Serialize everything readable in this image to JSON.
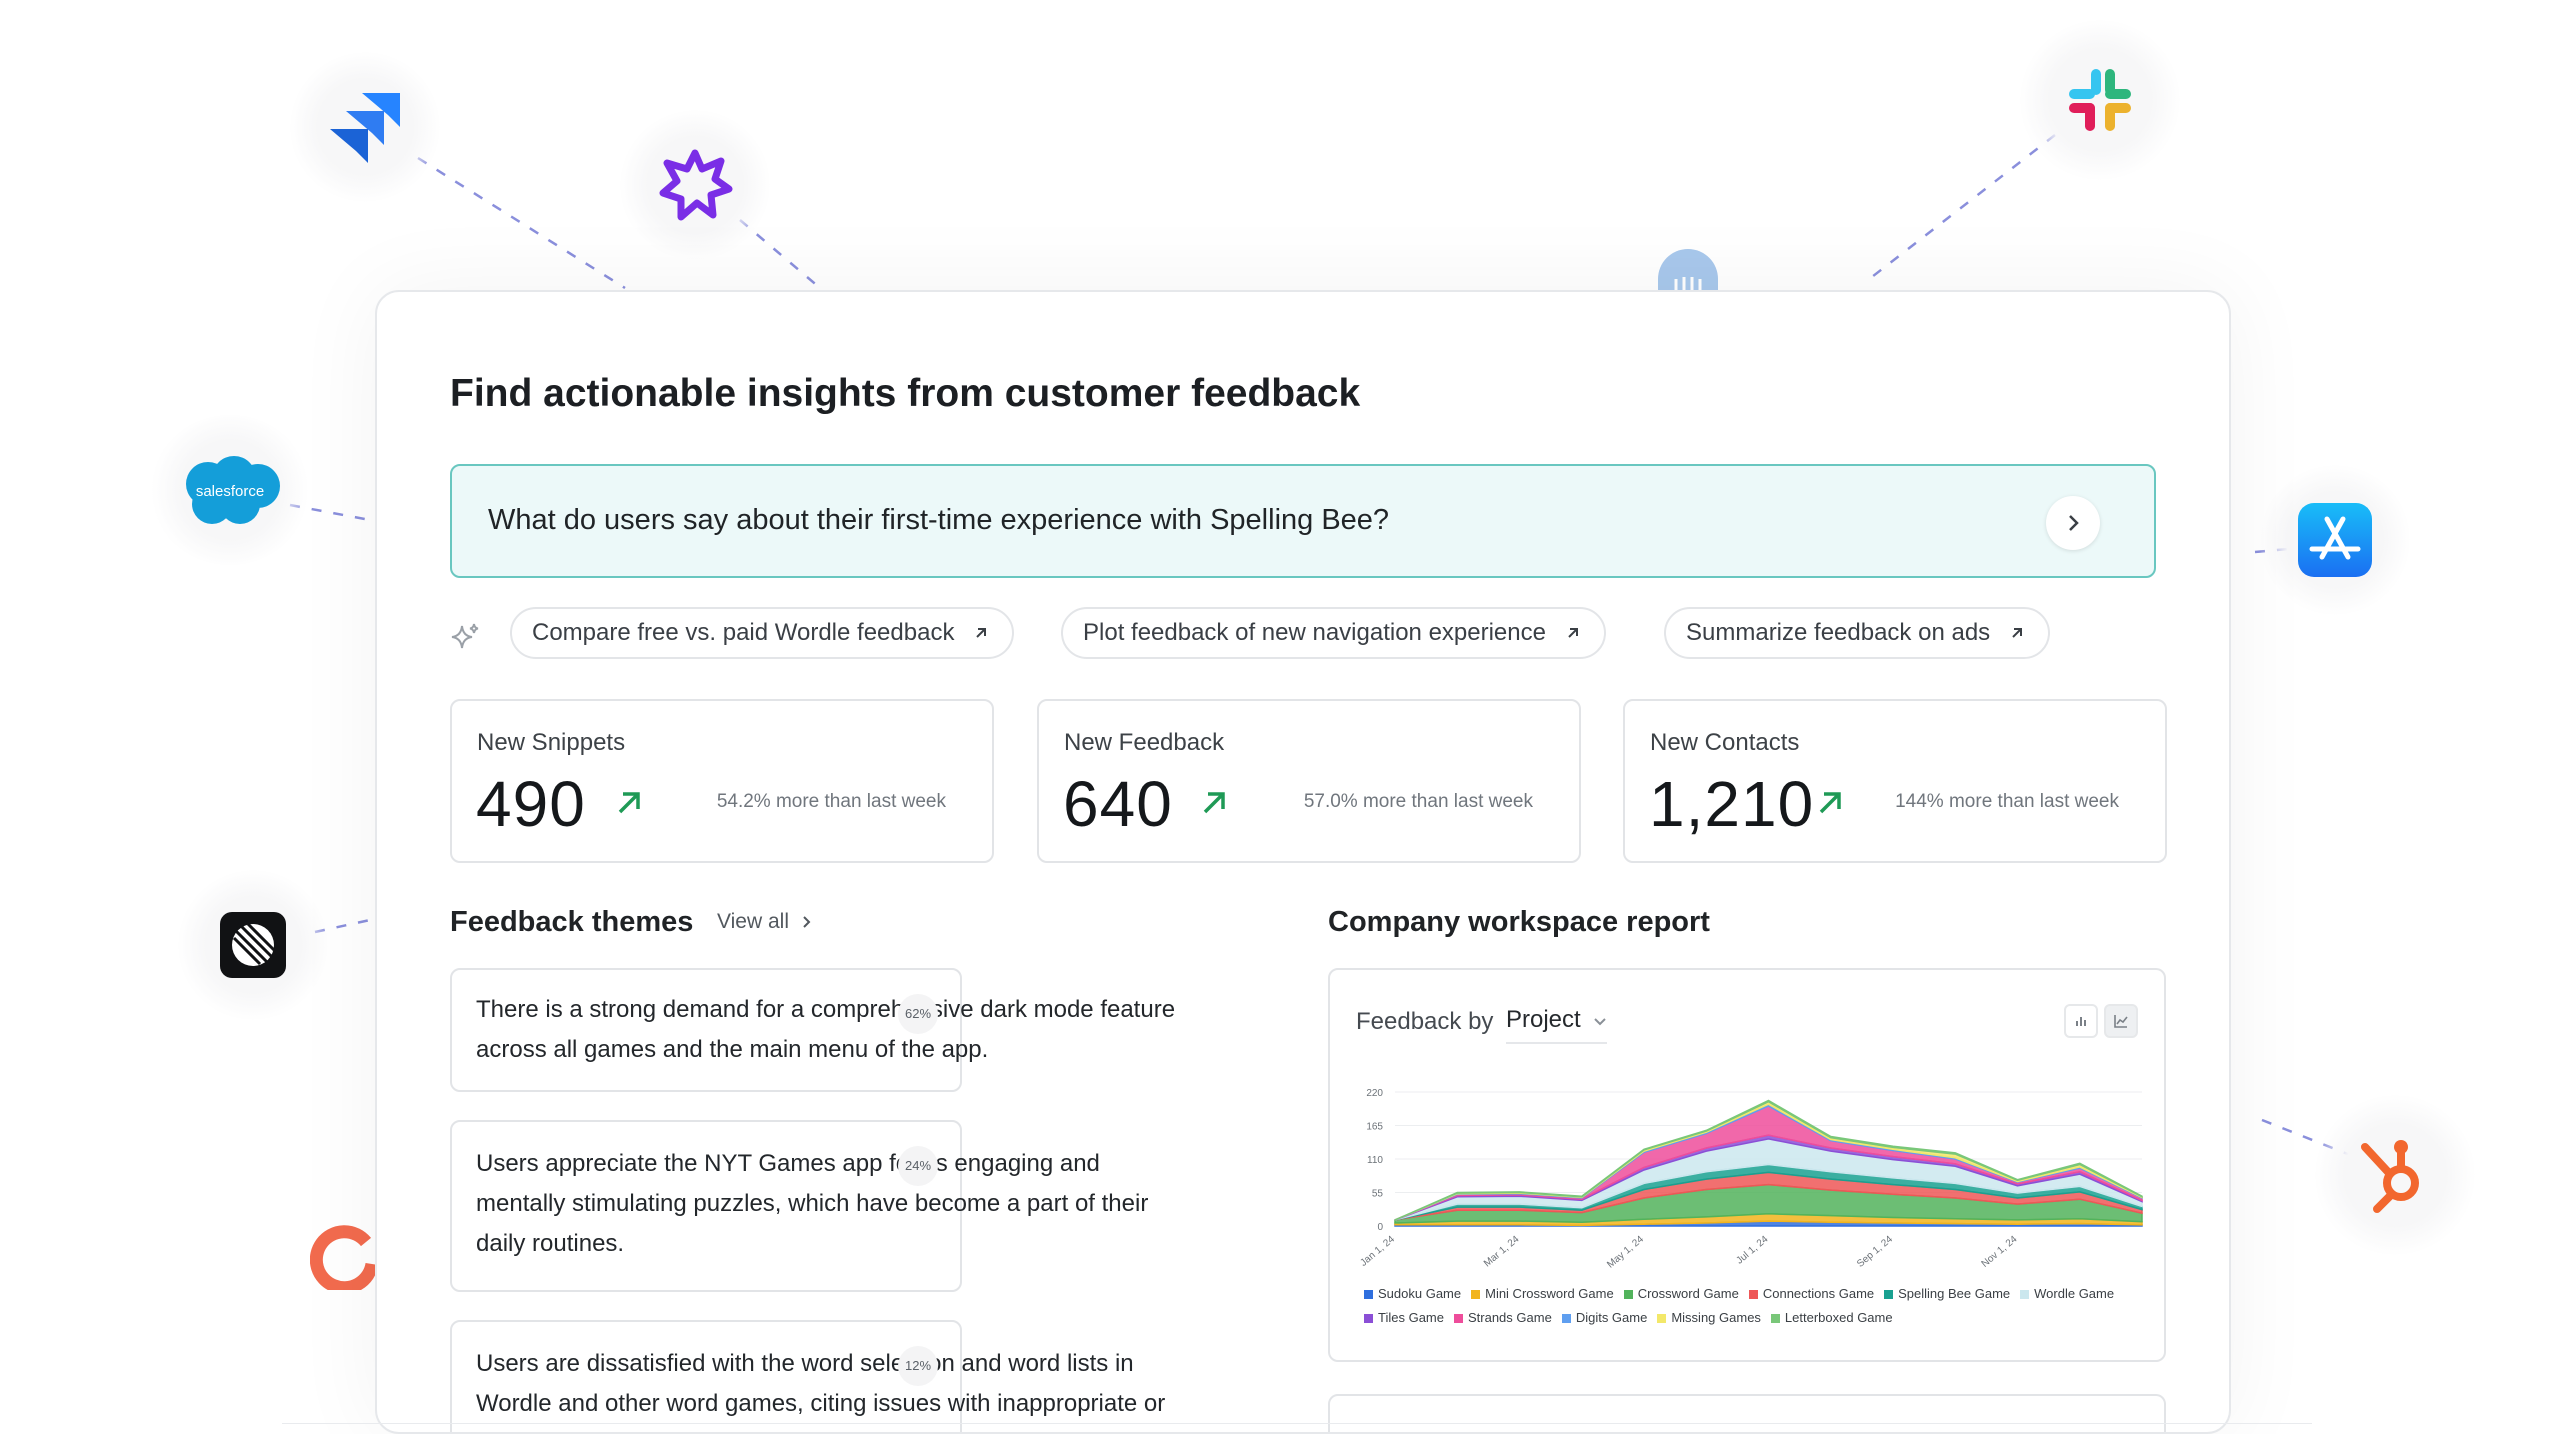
{
  "page": {
    "title": "Find actionable insights from customer feedback",
    "question": "What do users say about their first-time experience with Spelling Bee?",
    "suggestions": [
      {
        "label": "Compare free vs. paid Wordle feedback"
      },
      {
        "label": "Plot feedback of new navigation experience"
      },
      {
        "label": "Summarize feedback on ads"
      }
    ]
  },
  "stats": [
    {
      "label": "New Snippets",
      "value": "490",
      "note": "54.2% more than last week"
    },
    {
      "label": "New Feedback",
      "value": "640",
      "note": "57.0% more than last week"
    },
    {
      "label": "New Contacts",
      "value": "1,210",
      "note": "144% more than last week"
    }
  ],
  "themes": {
    "title": "Feedback themes",
    "view_all": "View all",
    "items": [
      {
        "text": "There is a strong demand for a comprehensive dark mode feature across all games and the main menu of the app.",
        "pct": "62%"
      },
      {
        "text": "Users appreciate the NYT Games app for its engaging and mentally stimulating puzzles, which have become a part of their daily routines.",
        "pct": "24%"
      },
      {
        "text": "Users are dissatisfied with the word selection and word lists in Wordle and other word games, citing issues with inappropriate or",
        "pct": "12%"
      }
    ]
  },
  "report": {
    "title": "Company workspace report",
    "feedback_by": "Feedback by",
    "group_by": "Project"
  },
  "integrations": [
    "jira-logo",
    "pendo-logo",
    "intercom-logo",
    "slack-logo",
    "salesforce-logo",
    "app-store-logo",
    "linear-logo",
    "hubspot-logo",
    "g2-logo"
  ],
  "salesforce_text": "salesforce",
  "chart_data": {
    "type": "area",
    "stacked": true,
    "x": [
      "Jan 1, 24",
      "Feb 1, 24",
      "Mar 1, 24",
      "Apr 1, 24",
      "May 1, 24",
      "Jun 1, 24",
      "Jul 1, 24",
      "Aug 1, 24",
      "Sep 1, 24",
      "Oct 1, 24",
      "Nov 1, 24",
      "Dec 1, 24",
      "Dec 31, 24"
    ],
    "xticks": [
      "Jan 1, 24",
      "Mar 1, 24",
      "May 1, 24",
      "Jul 1, 24",
      "Sep 1, 24",
      "Nov 1, 24"
    ],
    "yticks": [
      0,
      55,
      110,
      165,
      220
    ],
    "ylim": [
      0,
      220
    ],
    "grid": true,
    "legend_position": "bottom",
    "series": [
      {
        "name": "Sudoku Game",
        "color": "#2f6fde",
        "values": [
          2,
          2,
          2,
          1,
          3,
          5,
          8,
          6,
          5,
          4,
          3,
          4,
          2
        ]
      },
      {
        "name": "Mini Crossword Game",
        "color": "#f2b41c",
        "values": [
          3,
          6,
          6,
          5,
          8,
          10,
          12,
          11,
          9,
          8,
          7,
          8,
          5
        ]
      },
      {
        "name": "Crossword Game",
        "color": "#52b35c",
        "values": [
          5,
          18,
          18,
          16,
          35,
          45,
          48,
          42,
          38,
          34,
          26,
          32,
          14
        ]
      },
      {
        "name": "Connections Game",
        "color": "#ee5757",
        "values": [
          0,
          5,
          5,
          4,
          14,
          17,
          20,
          18,
          16,
          14,
          10,
          12,
          6
        ]
      },
      {
        "name": "Spelling Bee Game",
        "color": "#19a191",
        "values": [
          0,
          5,
          5,
          4,
          10,
          12,
          13,
          12,
          11,
          10,
          8,
          9,
          5
        ]
      },
      {
        "name": "Wordle Game",
        "color": "#cbe7ee",
        "values": [
          0,
          12,
          13,
          12,
          22,
          34,
          42,
          34,
          30,
          28,
          12,
          20,
          8
        ]
      },
      {
        "name": "Tiles Game",
        "color": "#8b4fd6",
        "values": [
          0,
          2,
          2,
          2,
          4,
          5,
          6,
          5,
          5,
          4,
          3,
          4,
          2
        ]
      },
      {
        "name": "Strands Game",
        "color": "#ee4d9b",
        "values": [
          0,
          2,
          2,
          2,
          25,
          24,
          48,
          12,
          10,
          8,
          3,
          6,
          4
        ]
      },
      {
        "name": "Digits Game",
        "color": "#5f9ff0",
        "values": [
          0,
          1,
          1,
          1,
          2,
          2,
          3,
          2,
          2,
          2,
          1,
          2,
          1
        ]
      },
      {
        "name": "Missing Games",
        "color": "#f3e86a",
        "values": [
          0,
          1,
          1,
          1,
          2,
          2,
          4,
          3,
          3,
          6,
          2,
          4,
          1
        ]
      },
      {
        "name": "Letterboxed Game",
        "color": "#79c779",
        "values": [
          0,
          1,
          1,
          1,
          1,
          1,
          2,
          2,
          2,
          2,
          1,
          2,
          1
        ]
      }
    ]
  }
}
